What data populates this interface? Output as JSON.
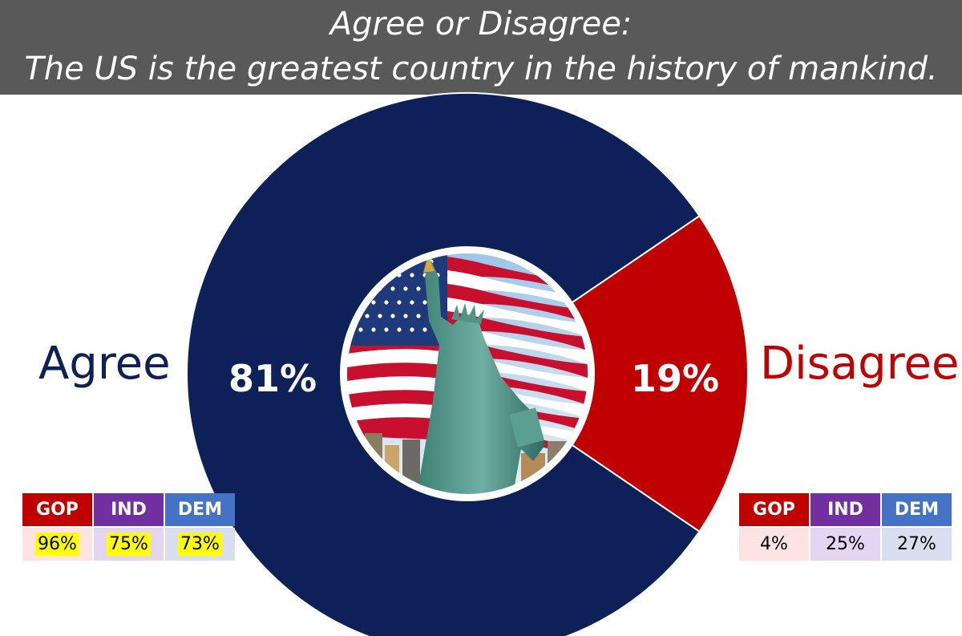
{
  "title": {
    "line1": "Agree or Disagree:",
    "line2": "The US is the greatest country in the history of mankind."
  },
  "labels": {
    "agree": "Agree",
    "disagree": "Disagree"
  },
  "colors": {
    "agree": "#0d2158",
    "disagree": "#c00000",
    "gop": "#c00000",
    "ind": "#7030a0",
    "dem": "#4472c4",
    "gop_light": "#fde3e3",
    "ind_light": "#e4d5f2",
    "dem_light": "#d9dff0",
    "highlight": "#ffff00"
  },
  "chart_data": {
    "type": "pie",
    "categories": [
      "Agree",
      "Disagree"
    ],
    "values": [
      81,
      19
    ],
    "value_labels": [
      "81%",
      "19%"
    ],
    "donut": true
  },
  "center_image": {
    "icon": "statue-of-liberty-flag-image"
  },
  "agree_table": {
    "headers": [
      "GOP",
      "IND",
      "DEM"
    ],
    "values": [
      "96%",
      "75%",
      "73%"
    ],
    "highlighted": true
  },
  "disagree_table": {
    "headers": [
      "GOP",
      "IND",
      "DEM"
    ],
    "values": [
      "4%",
      "25%",
      "27%"
    ],
    "highlighted": false
  }
}
